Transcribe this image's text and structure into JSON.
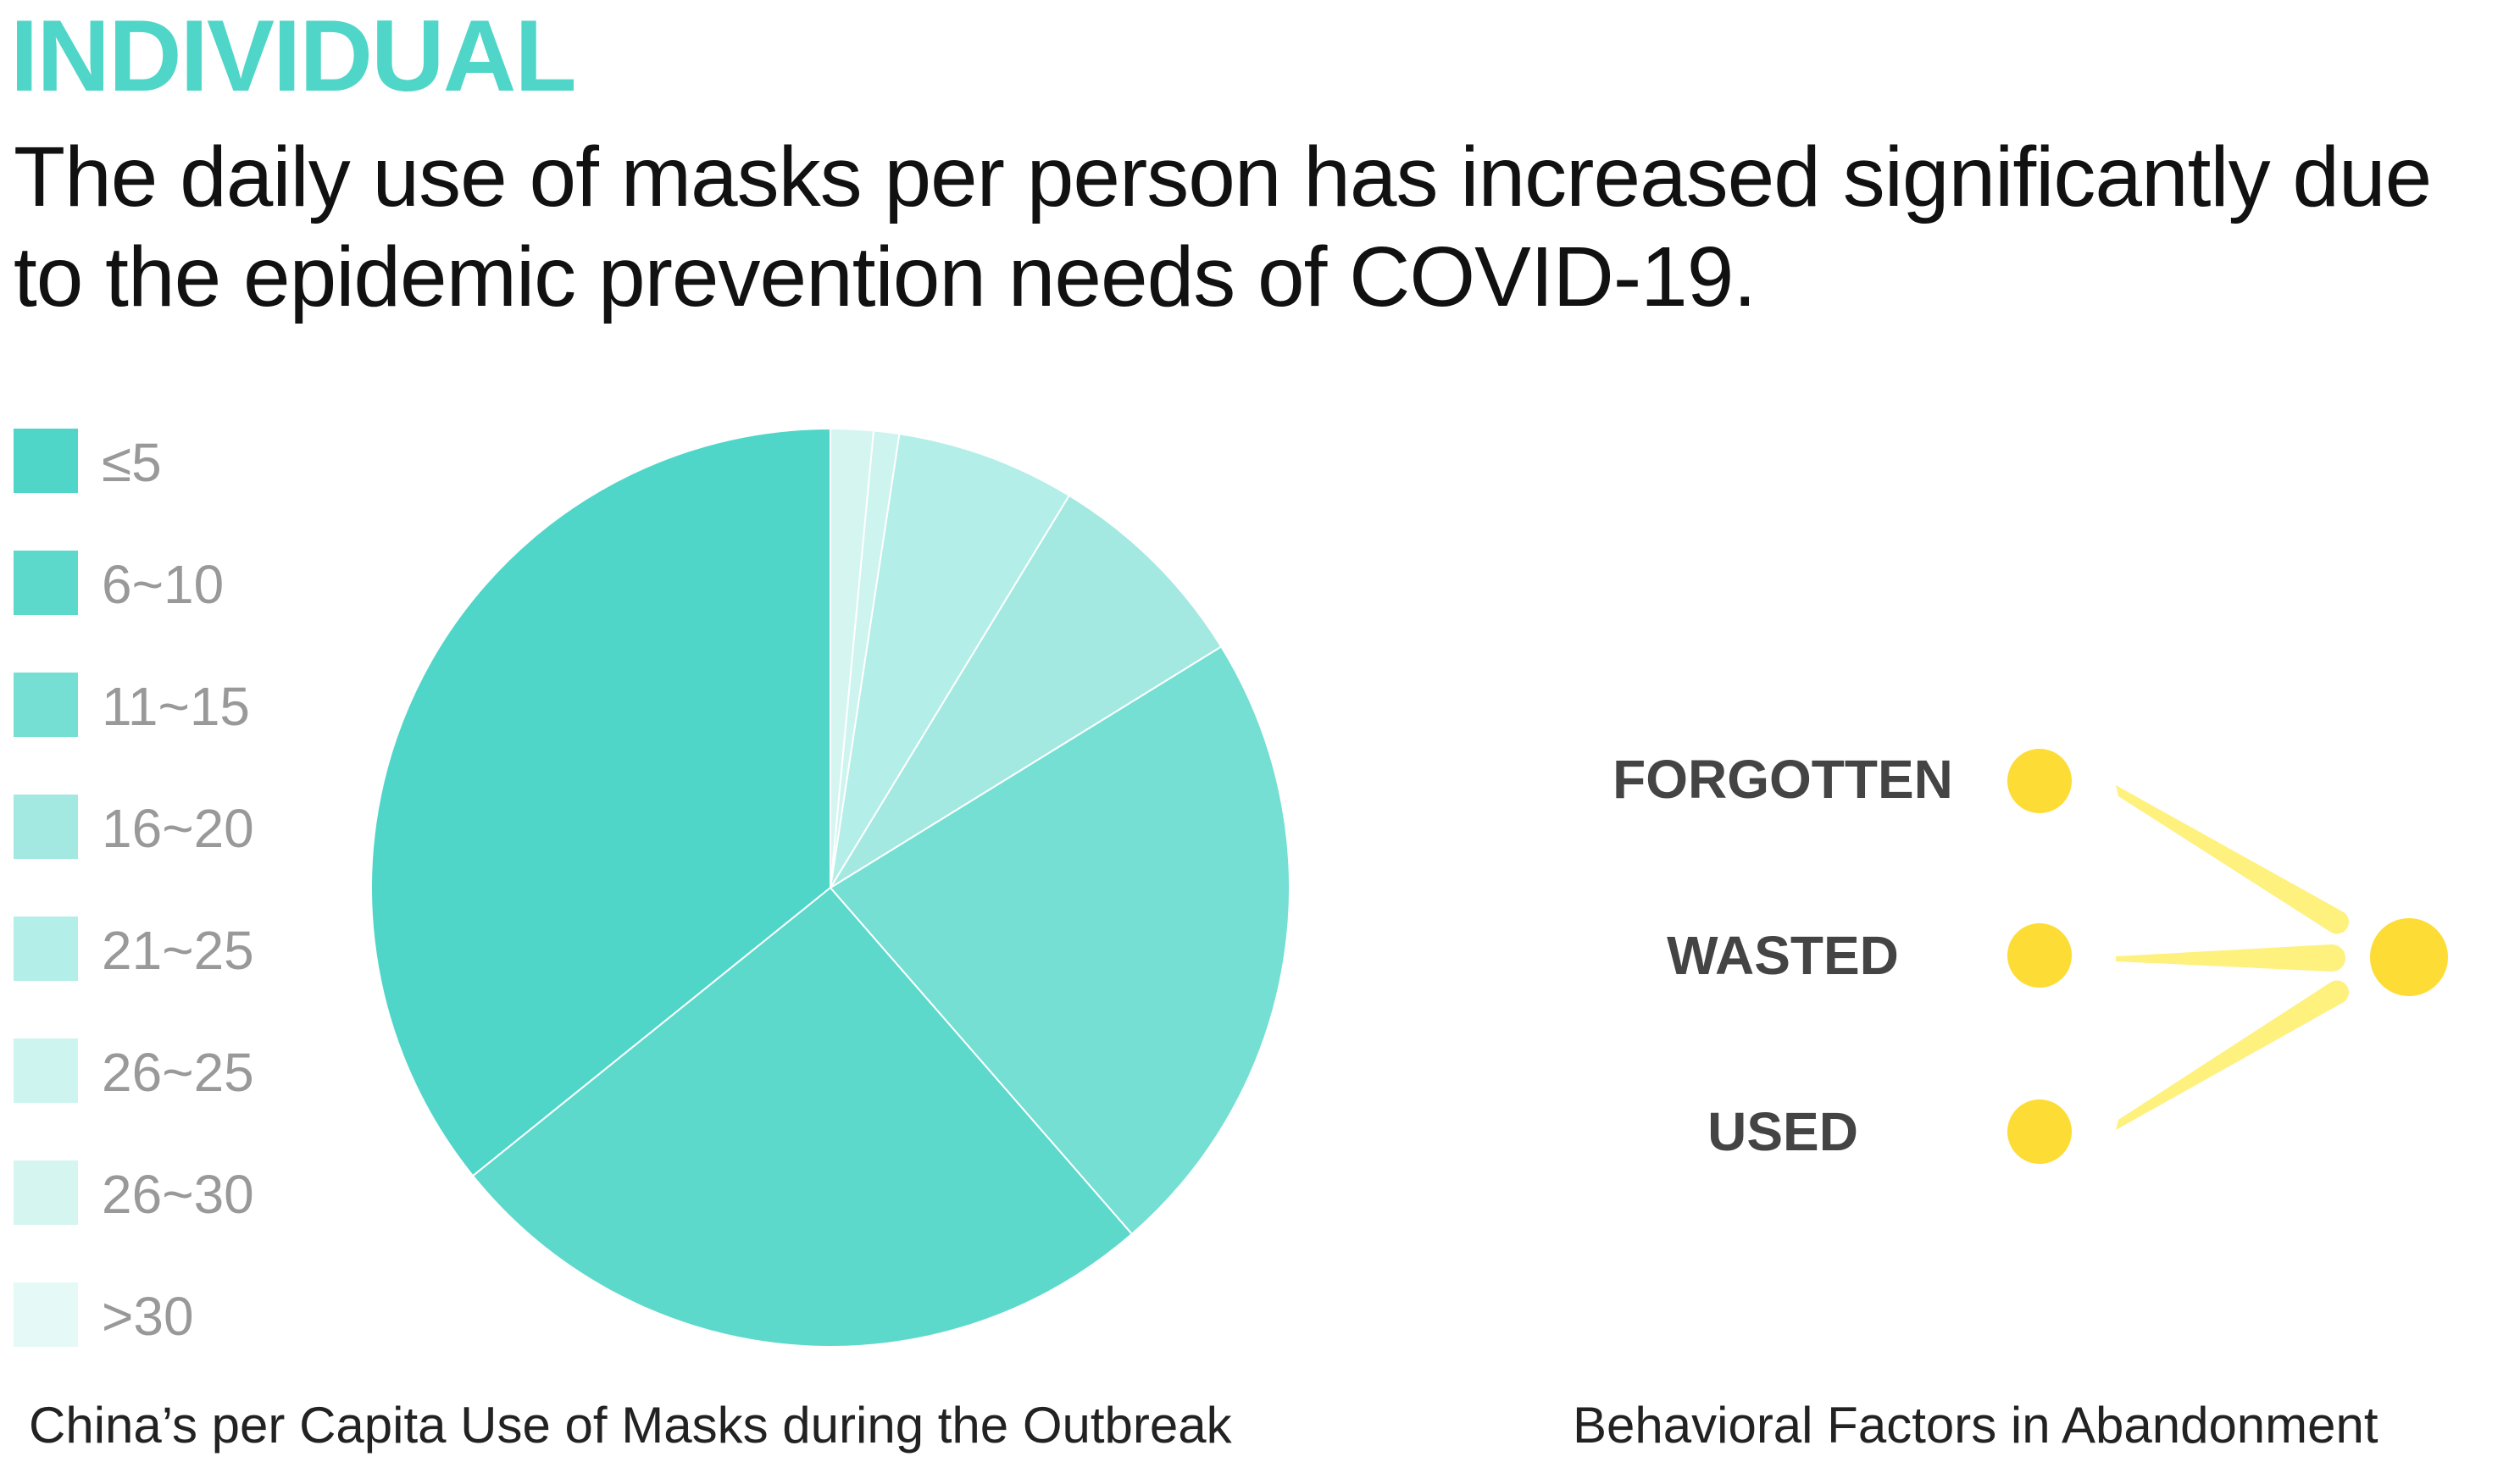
{
  "header": {
    "section": "INDIVIDUAL",
    "headline_line1": "The daily use of masks per person has increased significantly due",
    "headline_line2": "to the epidemic prevention needs of COVID-19."
  },
  "chart_data": [
    {
      "type": "pie",
      "title": "China’s per Capita Use of Masks during the Outbreak",
      "legend_position": "left",
      "slices": [
        {
          "label": "≤5",
          "value": 35.8,
          "color": "#4fd6c8"
        },
        {
          "label": "6~10",
          "value": 25.6,
          "color": "#5dd9cc"
        },
        {
          "label": "11~15",
          "value": 22.4,
          "color": "#74dfd2"
        },
        {
          "label": "16~20",
          "value": 7.5,
          "color": "#a3e9e1"
        },
        {
          "label": "21~25",
          "value": 6.3,
          "color": "#b4eee8"
        },
        {
          "label": "26~25",
          "value": 0.9,
          "color": "#cdf4ef"
        },
        {
          "label": "26~30",
          "value": 1.5,
          "color": "#d5f5f1"
        },
        {
          "label": ">30",
          "value": 0.0,
          "color": "#e5f9f6"
        }
      ]
    },
    {
      "type": "diagram",
      "title": "Behavioral Factors in Abandonment",
      "factors": [
        "FORGOTTEN",
        "WASTED",
        "USED"
      ],
      "dot_color": "#fddc35",
      "ray_color": "#fef17e"
    }
  ]
}
